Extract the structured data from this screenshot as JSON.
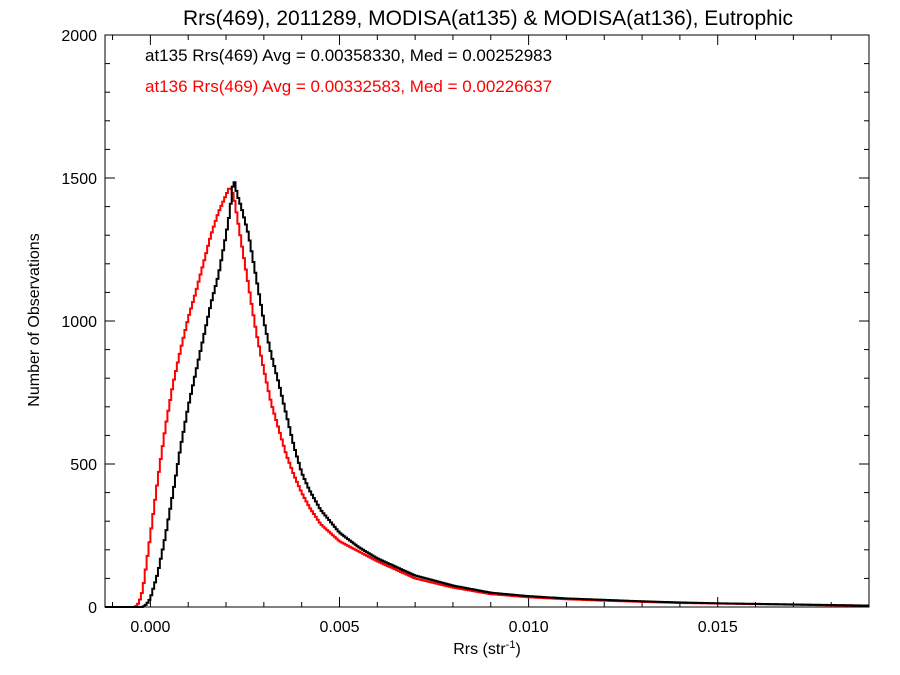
{
  "chart_data": {
    "type": "line",
    "title": "Rrs(469), 2011289, MODISA(at135) & MODISA(at136), Eutrophic",
    "xlabel": "Rrs (str",
    "xlabel_sup": "-1",
    "xlabel_end": ")",
    "ylabel": "Number of Observations",
    "xlim": [
      -0.0012,
      0.019
    ],
    "ylim": [
      0,
      2000
    ],
    "xticks": [
      0.0,
      0.005,
      0.01,
      0.015
    ],
    "xtick_labels": [
      "0.000",
      "0.005",
      "0.010",
      "0.015"
    ],
    "yticks": [
      0,
      500,
      1000,
      1500,
      2000
    ],
    "ytick_labels": [
      "0",
      "500",
      "1000",
      "1500",
      "2000"
    ],
    "grid": false,
    "legend_position": "top-left",
    "annotations": [
      {
        "text": "at135 Rrs(469) Avg = 0.00358330, Med = 0.00252983",
        "color": "#000000"
      },
      {
        "text": "at136 Rrs(469) Avg = 0.00332583, Med = 0.00226637",
        "color": "#ff0000"
      }
    ],
    "series": [
      {
        "color": "#000000",
        "points": [
          [
            -0.0012,
            0
          ],
          [
            -0.0002,
            0
          ],
          [
            -0.0001,
            10
          ],
          [
            0.0,
            30
          ],
          [
            0.0002,
            120
          ],
          [
            0.0004,
            250
          ],
          [
            0.0006,
            400
          ],
          [
            0.0008,
            560
          ],
          [
            0.001,
            700
          ],
          [
            0.0012,
            820
          ],
          [
            0.0014,
            940
          ],
          [
            0.0016,
            1060
          ],
          [
            0.0018,
            1160
          ],
          [
            0.002,
            1300
          ],
          [
            0.0021,
            1380
          ],
          [
            0.0022,
            1500
          ],
          [
            0.0023,
            1440
          ],
          [
            0.0024,
            1400
          ],
          [
            0.0026,
            1300
          ],
          [
            0.0028,
            1150
          ],
          [
            0.003,
            1000
          ],
          [
            0.0032,
            880
          ],
          [
            0.0034,
            780
          ],
          [
            0.0036,
            670
          ],
          [
            0.0038,
            560
          ],
          [
            0.004,
            470
          ],
          [
            0.0042,
            410
          ],
          [
            0.0045,
            340
          ],
          [
            0.005,
            260
          ],
          [
            0.0055,
            210
          ],
          [
            0.006,
            170
          ],
          [
            0.007,
            110
          ],
          [
            0.008,
            75
          ],
          [
            0.009,
            50
          ],
          [
            0.01,
            38
          ],
          [
            0.011,
            30
          ],
          [
            0.012,
            25
          ],
          [
            0.013,
            20
          ],
          [
            0.014,
            16
          ],
          [
            0.015,
            13
          ],
          [
            0.016,
            11
          ],
          [
            0.017,
            9
          ],
          [
            0.018,
            7
          ],
          [
            0.019,
            5
          ]
        ]
      },
      {
        "color": "#ff0000",
        "points": [
          [
            -0.0012,
            0
          ],
          [
            -0.0004,
            0
          ],
          [
            -0.0003,
            15
          ],
          [
            -0.0002,
            60
          ],
          [
            0.0,
            250
          ],
          [
            0.0002,
            450
          ],
          [
            0.0004,
            630
          ],
          [
            0.0006,
            780
          ],
          [
            0.0008,
            900
          ],
          [
            0.001,
            1010
          ],
          [
            0.0012,
            1100
          ],
          [
            0.0014,
            1200
          ],
          [
            0.0016,
            1300
          ],
          [
            0.0018,
            1380
          ],
          [
            0.002,
            1440
          ],
          [
            0.0021,
            1470
          ],
          [
            0.0022,
            1440
          ],
          [
            0.0023,
            1360
          ],
          [
            0.0024,
            1280
          ],
          [
            0.0026,
            1120
          ],
          [
            0.0028,
            960
          ],
          [
            0.003,
            830
          ],
          [
            0.0032,
            710
          ],
          [
            0.0034,
            620
          ],
          [
            0.0036,
            530
          ],
          [
            0.0038,
            460
          ],
          [
            0.004,
            400
          ],
          [
            0.0042,
            350
          ],
          [
            0.0045,
            290
          ],
          [
            0.005,
            230
          ],
          [
            0.0055,
            195
          ],
          [
            0.006,
            160
          ],
          [
            0.007,
            100
          ],
          [
            0.008,
            68
          ],
          [
            0.009,
            45
          ],
          [
            0.01,
            34
          ],
          [
            0.011,
            27
          ],
          [
            0.012,
            22
          ],
          [
            0.013,
            18
          ],
          [
            0.014,
            14
          ],
          [
            0.015,
            12
          ],
          [
            0.016,
            10
          ],
          [
            0.017,
            8
          ],
          [
            0.018,
            6
          ],
          [
            0.019,
            5
          ]
        ]
      }
    ]
  }
}
